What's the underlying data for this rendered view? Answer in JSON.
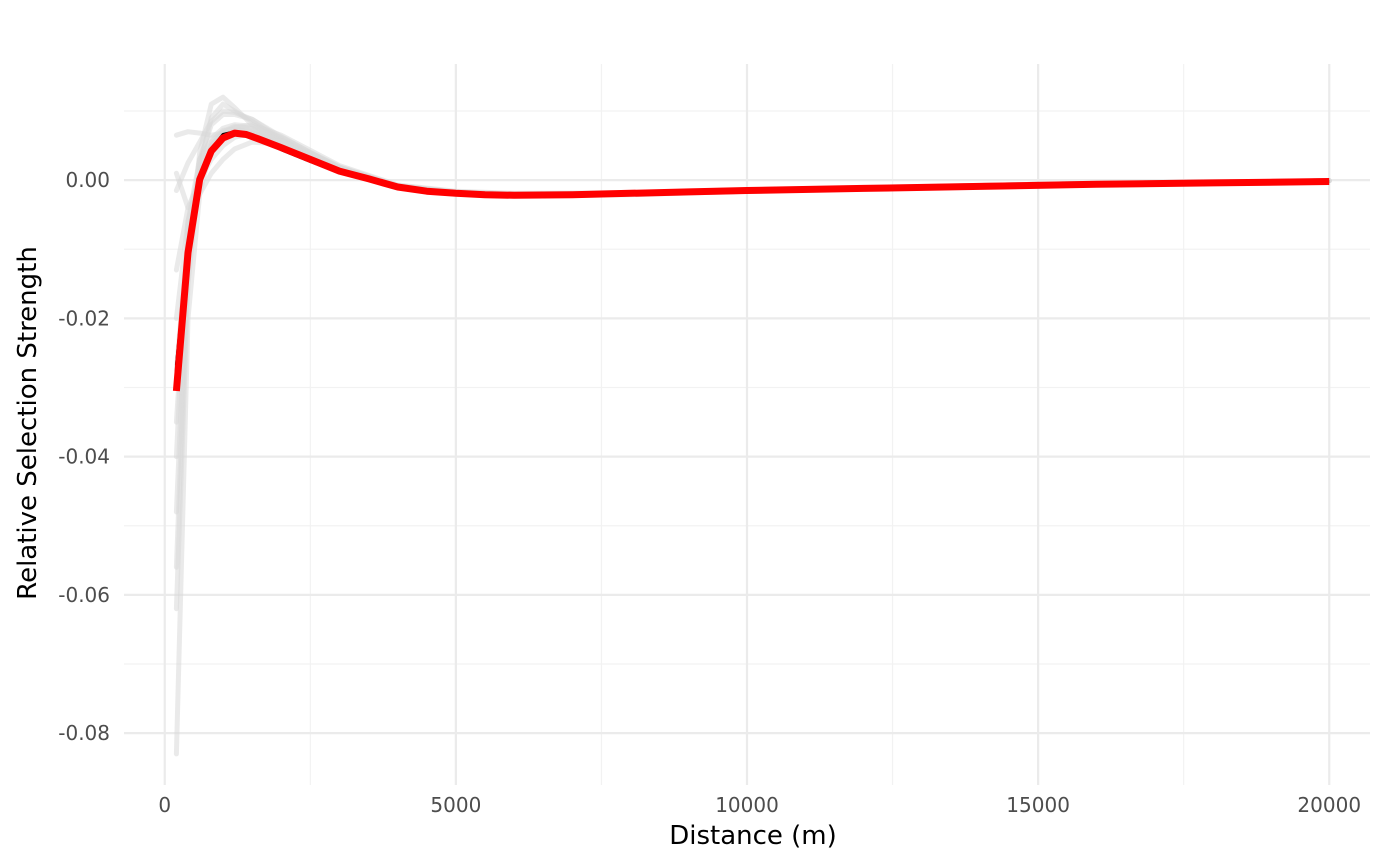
{
  "chart_data": {
    "type": "line",
    "xlabel": "Distance (m)",
    "ylabel": "Relative Selection Strength",
    "xlim": [
      -700,
      20700
    ],
    "ylim": [
      -0.0875,
      0.0168
    ],
    "x_ticks": [
      0,
      5000,
      10000,
      15000,
      20000
    ],
    "x_tick_labels": [
      "0",
      "5000",
      "10000",
      "15000",
      "20000"
    ],
    "y_ticks": [
      -0.08,
      -0.06,
      -0.04,
      -0.02,
      0.0
    ],
    "y_tick_labels": [
      "-0.08",
      "-0.06",
      "-0.04",
      "-0.02",
      "0.00"
    ],
    "grid": true,
    "legend": "none",
    "series_colors": {
      "bootstrap": "#d9d9d9",
      "fit": "#000000",
      "mean": "#ff0000"
    },
    "bootstrap_series": [
      {
        "x": [
          200,
          400,
          600,
          800,
          1000,
          1200,
          1500,
          2000,
          2500,
          3000,
          4000,
          5000,
          6000,
          8000,
          10000,
          15000,
          20000
        ],
        "y": [
          -0.083,
          -0.02,
          -0.002,
          0.005,
          0.007,
          0.0078,
          0.0075,
          0.0055,
          0.0035,
          0.0015,
          -0.001,
          -0.0018,
          -0.0021,
          -0.0019,
          -0.0015,
          -0.0007,
          -0.0001
        ]
      },
      {
        "x": [
          200,
          400,
          600,
          800,
          1000,
          1200,
          1500,
          2000,
          2500,
          3000,
          4000,
          5000,
          6000,
          8000,
          10000,
          15000,
          20000
        ],
        "y": [
          -0.062,
          -0.015,
          0.002,
          0.009,
          0.011,
          0.01,
          0.0085,
          0.0058,
          0.0036,
          0.0016,
          -0.001,
          -0.0019,
          -0.0022,
          -0.002,
          -0.0016,
          -0.0007,
          -0.0001
        ]
      },
      {
        "x": [
          200,
          400,
          600,
          800,
          1000,
          1200,
          1500,
          2000,
          2500,
          3000,
          4000,
          5000,
          6000,
          8000,
          10000,
          15000,
          20000
        ],
        "y": [
          -0.056,
          -0.012,
          0.004,
          0.011,
          0.012,
          0.0105,
          0.008,
          0.0055,
          0.0034,
          0.0015,
          -0.0011,
          -0.0019,
          -0.0022,
          -0.002,
          -0.0016,
          -0.0007,
          -0.0001
        ]
      },
      {
        "x": [
          200,
          400,
          600,
          800,
          1000,
          1200,
          1500,
          2000,
          2500,
          3000,
          4000,
          5000,
          6000,
          8000,
          10000,
          15000,
          20000
        ],
        "y": [
          -0.048,
          -0.01,
          0.003,
          0.008,
          0.0095,
          0.0095,
          0.0088,
          0.006,
          0.0037,
          0.0017,
          -0.0009,
          -0.0018,
          -0.0021,
          -0.0019,
          -0.0015,
          -0.0006,
          -0.0001
        ]
      },
      {
        "x": [
          200,
          400,
          600,
          800,
          1000,
          1200,
          1500,
          2000,
          2500,
          3000,
          4000,
          5000,
          6000,
          8000,
          10000,
          15000,
          20000
        ],
        "y": [
          -0.04,
          -0.006,
          0.003,
          0.006,
          0.0075,
          0.008,
          0.0078,
          0.0062,
          0.004,
          0.0019,
          -0.0008,
          -0.0017,
          -0.002,
          -0.0019,
          -0.0015,
          -0.0006,
          -0.0001
        ]
      },
      {
        "x": [
          200,
          400,
          600,
          800,
          1000,
          1200,
          1500,
          2000,
          2500,
          3000,
          4000,
          5000,
          6000,
          8000,
          10000,
          15000,
          20000
        ],
        "y": [
          -0.013,
          -0.004,
          0.0,
          0.003,
          0.005,
          0.0062,
          0.0068,
          0.0058,
          0.0039,
          0.0018,
          -0.0009,
          -0.0018,
          -0.0021,
          -0.0019,
          -0.0015,
          -0.0006,
          -0.0001
        ]
      },
      {
        "x": [
          200,
          400,
          600,
          800,
          1000,
          1200,
          1500,
          2000,
          2500,
          3000,
          4000,
          5000,
          6000,
          8000,
          10000,
          15000,
          20000
        ],
        "y": [
          0.001,
          -0.004,
          -0.002,
          0.001,
          0.003,
          0.0045,
          0.0055,
          0.0052,
          0.0037,
          0.0018,
          -0.0009,
          -0.0018,
          -0.0021,
          -0.0019,
          -0.0015,
          -0.0006,
          -0.0001
        ]
      },
      {
        "x": [
          200,
          400,
          600,
          800,
          1000,
          1200,
          1500,
          2000,
          2500,
          3000,
          4000,
          5000,
          6000,
          8000,
          10000,
          15000,
          20000
        ],
        "y": [
          0.0065,
          0.007,
          0.0068,
          0.0065,
          0.0068,
          0.007,
          0.0068,
          0.0055,
          0.0037,
          0.0017,
          -0.001,
          -0.0019,
          -0.0022,
          -0.002,
          -0.0016,
          -0.0007,
          -0.0001
        ]
      },
      {
        "x": [
          200,
          400,
          600,
          800,
          1000,
          1200,
          1500,
          2000,
          2500,
          3000,
          4000,
          5000,
          6000,
          8000,
          10000,
          15000,
          20000
        ],
        "y": [
          -0.0015,
          0.0025,
          0.0055,
          0.0085,
          0.01,
          0.0098,
          0.0088,
          0.0063,
          0.004,
          0.0019,
          -0.0008,
          -0.0017,
          -0.002,
          -0.0019,
          -0.0015,
          -0.0006,
          -0.0001
        ]
      },
      {
        "x": [
          200,
          400,
          600,
          800,
          1000,
          1200,
          1500,
          2000,
          2500,
          3000,
          4000,
          5000,
          6000,
          8000,
          10000,
          15000,
          20000
        ],
        "y": [
          -0.0275,
          -0.008,
          0.001,
          0.0055,
          0.0072,
          0.0074,
          0.007,
          0.0053,
          0.0034,
          0.0014,
          -0.0011,
          -0.002,
          -0.0023,
          -0.0021,
          -0.0016,
          -0.0007,
          -0.0001
        ]
      },
      {
        "x": [
          200,
          400,
          600,
          800,
          1000,
          1200,
          1500,
          2000,
          2500,
          3000,
          4000,
          5000,
          6000,
          8000,
          10000,
          15000,
          20000
        ],
        "y": [
          -0.035,
          -0.009,
          0.0,
          0.0045,
          0.0065,
          0.0072,
          0.0072,
          0.0057,
          0.0038,
          0.0017,
          -0.001,
          -0.0019,
          -0.0021,
          -0.0019,
          -0.0015,
          -0.0006,
          -0.0001
        ]
      },
      {
        "x": [
          200,
          400,
          600,
          800,
          1000,
          1200,
          1500,
          2000,
          2500,
          3000,
          4000,
          5000,
          6000,
          8000,
          10000,
          15000,
          20000
        ],
        "y": [
          -0.02,
          -0.006,
          0.001,
          0.0048,
          0.0068,
          0.0076,
          0.008,
          0.0065,
          0.0043,
          0.0021,
          -0.0007,
          -0.0016,
          -0.0019,
          -0.0018,
          -0.0014,
          -0.0006,
          -0.0001
        ]
      }
    ],
    "fit_series": {
      "x": [
        200,
        400,
        600,
        800,
        1000,
        1200,
        1400,
        1600,
        2000,
        2500,
        3000,
        3500,
        4000,
        4500,
        5000,
        5500,
        6000,
        7000,
        8000,
        9000,
        10000,
        12000,
        14000,
        16000,
        18000,
        20000
      ],
      "y": [
        -0.0268,
        -0.0095,
        0.0002,
        0.0045,
        0.0066,
        0.007,
        0.0067,
        0.006,
        0.0044,
        0.0027,
        0.0011,
        0.0,
        -0.0011,
        -0.0016,
        -0.0019,
        -0.0021,
        -0.0022,
        -0.0021,
        -0.0019,
        -0.0017,
        -0.0015,
        -0.0012,
        -0.0009,
        -0.0006,
        -0.0004,
        -0.0002
      ]
    },
    "mean_series": {
      "x": [
        200,
        400,
        600,
        800,
        1000,
        1200,
        1400,
        1600,
        2000,
        2500,
        3000,
        3500,
        4000,
        4500,
        5000,
        5500,
        6000,
        7000,
        8000,
        9000,
        10000,
        12000,
        14000,
        16000,
        18000,
        20000
      ],
      "y": [
        -0.0305,
        -0.0105,
        0.0001,
        0.0042,
        0.0061,
        0.0068,
        0.0066,
        0.006,
        0.0047,
        0.003,
        0.0013,
        0.0002,
        -0.001,
        -0.0016,
        -0.0019,
        -0.0021,
        -0.0022,
        -0.0021,
        -0.0019,
        -0.0017,
        -0.0015,
        -0.0012,
        -0.0009,
        -0.0006,
        -0.0004,
        -0.0002
      ]
    }
  }
}
